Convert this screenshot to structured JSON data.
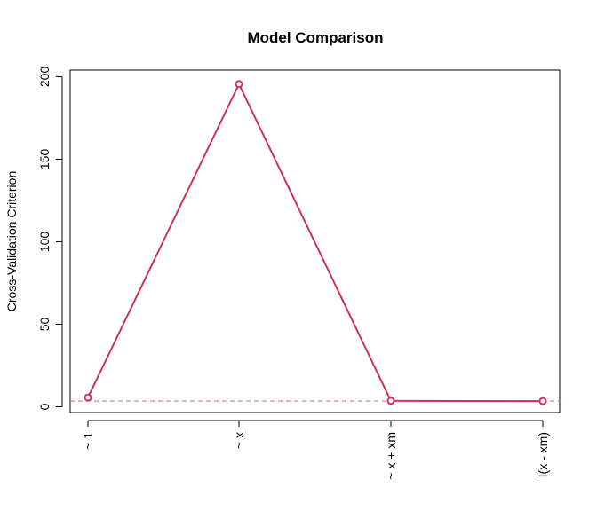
{
  "chart_data": {
    "type": "line",
    "title": "Model Comparison",
    "xlabel": "",
    "ylabel": "Cross-Validation Criterion",
    "categories": [
      "~ 1",
      "~ x",
      "~ x + xm",
      "I(x - xm)"
    ],
    "series": [
      {
        "values": [
          5.6,
          195.5,
          3.6,
          3.4
        ],
        "color": "#cc3355",
        "marker": "open-circle"
      }
    ],
    "reference_line": {
      "y": 3.4,
      "style": "dashed",
      "color": "#e06080"
    },
    "ylim": [
      -3.5,
      204
    ],
    "y_ticks": [
      0,
      50,
      100,
      150,
      200
    ],
    "x_tick_orientation": "vertical",
    "grid": false,
    "legend": "none"
  }
}
